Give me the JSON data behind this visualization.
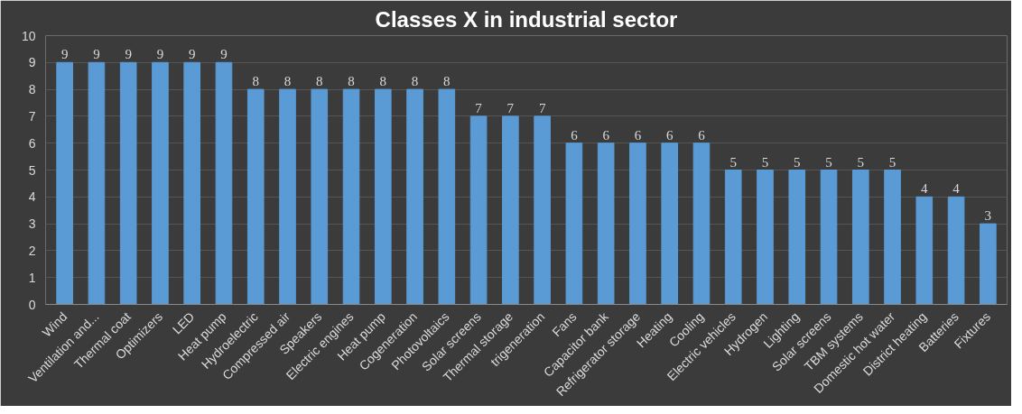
{
  "chart_data": {
    "type": "bar",
    "title": "Classes X in industrial sector",
    "categories": [
      "Wind",
      "Ventilation and...",
      "Thermal coat",
      "Optimizers",
      "LED",
      "Heat pump",
      "Hydroelectric",
      "Compressed air",
      "Speakers",
      "Electric engines",
      "Heat pump",
      "Cogeneration",
      "Photovoltaics",
      "Solar screens",
      "Thermal storage",
      "trigeneration",
      "Fans",
      "Capacitor bank",
      "Refrigerator storage",
      "Heating",
      "Cooling",
      "Electric vehicles",
      "Hydrogen",
      "Lighting",
      "Solar screens",
      "TBM systems",
      "Domestic hot water",
      "District heating",
      "Batteries",
      "Fixtures"
    ],
    "values": [
      9,
      9,
      9,
      9,
      9,
      9,
      8,
      8,
      8,
      8,
      8,
      8,
      8,
      7,
      7,
      7,
      6,
      6,
      6,
      6,
      6,
      5,
      5,
      5,
      5,
      5,
      5,
      4,
      4,
      3
    ],
    "color": "#5b9bd5",
    "ylim": [
      0,
      10
    ],
    "yticks": [
      0,
      1,
      2,
      3,
      4,
      5,
      6,
      7,
      8,
      9,
      10
    ],
    "grid": "y",
    "data_labels": true
  }
}
